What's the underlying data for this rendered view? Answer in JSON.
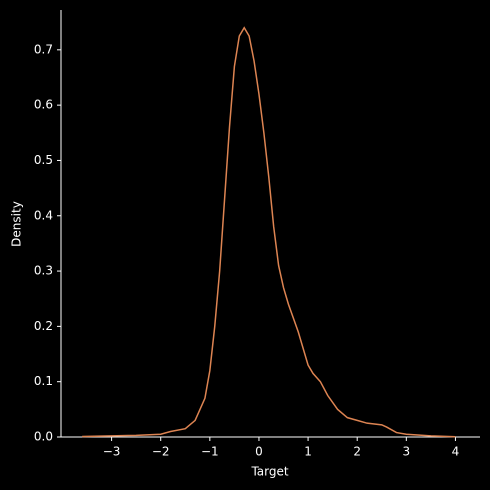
{
  "chart_data": {
    "type": "line",
    "x_label": "Target",
    "y_label": "Density",
    "x": [
      -3.6,
      -3,
      -2.5,
      -2,
      -1.8,
      -1.5,
      -1.3,
      -1.1,
      -1.0,
      -0.9,
      -0.8,
      -0.7,
      -0.6,
      -0.5,
      -0.4,
      -0.3,
      -0.2,
      -0.1,
      0,
      0.1,
      0.2,
      0.3,
      0.4,
      0.5,
      0.6,
      0.8,
      1.0,
      1.1,
      1.25,
      1.4,
      1.6,
      1.8,
      2.0,
      2.2,
      2.5,
      2.6,
      2.8,
      3.0,
      3.5,
      4.0
    ],
    "series": [
      {
        "color": "#dd8452",
        "values": [
          0.001,
          0.002,
          0.003,
          0.005,
          0.01,
          0.015,
          0.03,
          0.07,
          0.12,
          0.2,
          0.3,
          0.43,
          0.56,
          0.67,
          0.725,
          0.74,
          0.725,
          0.68,
          0.62,
          0.55,
          0.47,
          0.38,
          0.31,
          0.27,
          0.24,
          0.19,
          0.13,
          0.115,
          0.1,
          0.075,
          0.05,
          0.035,
          0.03,
          0.025,
          0.022,
          0.018,
          0.008,
          0.005,
          0.002,
          0.0005
        ]
      }
    ],
    "xlim": [
      -4.03,
      4.5
    ],
    "ylim": [
      0,
      0.772
    ],
    "xticks": [
      {
        "value": -3,
        "label": "−3"
      },
      {
        "value": -2,
        "label": "−2"
      },
      {
        "value": -1,
        "label": "−1"
      },
      0,
      1,
      2,
      3,
      4
    ],
    "yticks": [
      {
        "value": 0,
        "label": "0.0"
      },
      0.1,
      0.2,
      0.3,
      0.4,
      0.5,
      0.6,
      0.7
    ]
  }
}
